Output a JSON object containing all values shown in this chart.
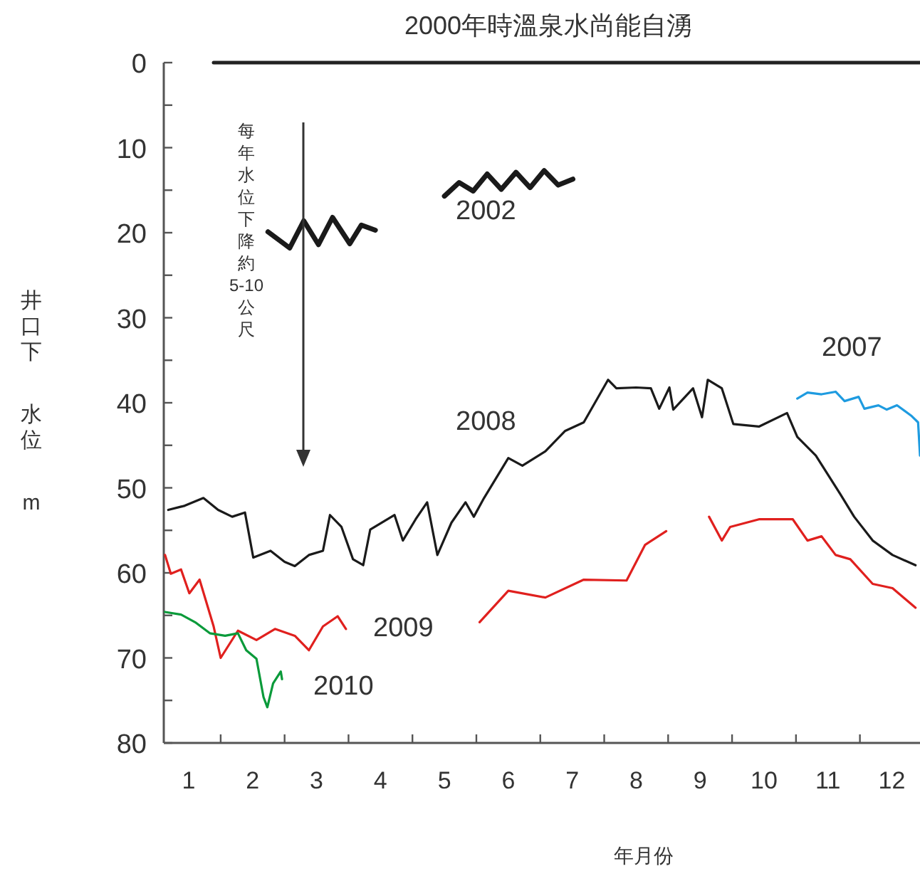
{
  "chart_data": {
    "type": "line",
    "title": "2000年時溫泉水尚能自湧",
    "xlabel": "年月份",
    "ylabel": "井口下水位m",
    "xlim": [
      0.61,
      12.44
    ],
    "ylim": [
      80,
      0
    ],
    "xticks": [
      {
        "value": 1,
        "label": "1"
      },
      {
        "value": 1.5,
        "label": null
      },
      {
        "value": 2,
        "label": "2"
      },
      {
        "value": 2.5,
        "label": null
      },
      {
        "value": 3,
        "label": "3"
      },
      {
        "value": 3.5,
        "label": null
      },
      {
        "value": 4,
        "label": "4"
      },
      {
        "value": 4.5,
        "label": null
      },
      {
        "value": 5,
        "label": "5"
      },
      {
        "value": 5.5,
        "label": null
      },
      {
        "value": 6,
        "label": "6"
      },
      {
        "value": 6.5,
        "label": null
      },
      {
        "value": 7,
        "label": "7"
      },
      {
        "value": 7.5,
        "label": null
      },
      {
        "value": 8,
        "label": "8"
      },
      {
        "value": 8.5,
        "label": null
      },
      {
        "value": 9,
        "label": "9"
      },
      {
        "value": 9.5,
        "label": null
      },
      {
        "value": 10,
        "label": "10"
      },
      {
        "value": 10.5,
        "label": null
      },
      {
        "value": 11,
        "label": "11"
      },
      {
        "value": 11.5,
        "label": null
      },
      {
        "value": 12,
        "label": "12"
      }
    ],
    "yticks": [
      0,
      {
        "value": 5,
        "label": null
      },
      10,
      {
        "value": 15,
        "label": null
      },
      20,
      {
        "value": 25,
        "label": null
      },
      30,
      {
        "value": 35,
        "label": null
      },
      40,
      {
        "value": 45,
        "label": null
      },
      50,
      {
        "value": 55,
        "label": null
      },
      60,
      {
        "value": 65,
        "label": null
      },
      70,
      {
        "value": 75,
        "label": null
      },
      80
    ],
    "annotations": [
      "每年水位下降約5-10公尺"
    ],
    "series": [
      {
        "color": "#222222",
        "x": [
          1.39,
          12.44
        ],
        "values": [
          0,
          0
        ]
      },
      {
        "name": "2002",
        "color": "#1a1a1a",
        "x": [
          2.24,
          2.58,
          2.8,
          3.03,
          3.25,
          3.52,
          3.7,
          3.92,
          null,
          5.0,
          5.23,
          5.45,
          5.67,
          5.89,
          6.12,
          6.34,
          6.56,
          6.78,
          7.01
        ],
        "values": [
          19.9,
          21.8,
          18.6,
          21.4,
          18.2,
          21.3,
          19.1,
          19.7,
          null,
          15.7,
          14.1,
          15.1,
          13.1,
          14.9,
          12.9,
          14.7,
          12.7,
          14.4,
          13.7
        ]
      },
      {
        "name": "2007",
        "color": "#1e9be0",
        "x": [
          10.52,
          10.68,
          10.9,
          11.12,
          11.26,
          11.48,
          11.57,
          11.79,
          11.92,
          12.08,
          12.3,
          12.41,
          12.44
        ],
        "values": [
          39.5,
          38.8,
          39.0,
          38.7,
          39.8,
          39.3,
          40.7,
          40.3,
          40.8,
          40.3,
          41.5,
          42.3,
          46.2
        ]
      },
      {
        "name": "2008",
        "color": "#1a1a1a",
        "x": [
          0.68,
          0.94,
          1.23,
          1.46,
          1.68,
          1.88,
          2.01,
          2.28,
          2.5,
          2.66,
          2.88,
          3.1,
          3.21,
          3.39,
          3.57,
          3.73,
          3.84,
          4.22,
          4.35,
          4.55,
          4.73,
          4.89,
          5.11,
          5.33,
          5.46,
          5.62,
          6.0,
          6.22,
          6.58,
          6.89,
          7.18,
          7.56,
          7.69,
          8.0,
          8.23,
          8.36,
          8.52,
          8.58,
          8.89,
          9.03,
          9.12,
          9.34,
          9.52,
          9.92,
          10.36,
          10.52,
          10.81,
          11.19,
          11.41,
          11.7,
          12.01,
          12.37
        ],
        "values": [
          52.6,
          52.1,
          51.2,
          52.6,
          53.4,
          52.9,
          58.2,
          57.4,
          58.7,
          59.2,
          57.9,
          57.4,
          53.2,
          54.6,
          58.4,
          59.1,
          54.9,
          53.2,
          56.2,
          53.7,
          51.7,
          57.9,
          54.1,
          51.7,
          53.4,
          51.2,
          46.5,
          47.4,
          45.7,
          43.3,
          42.3,
          37.3,
          38.3,
          38.2,
          38.3,
          40.7,
          38.2,
          40.8,
          38.3,
          41.7,
          37.3,
          38.3,
          42.5,
          42.8,
          41.2,
          44.0,
          46.2,
          50.7,
          53.4,
          56.2,
          57.9,
          59.1
        ]
      },
      {
        "name": "2009",
        "color": "#e0201e",
        "x": [
          0.63,
          0.72,
          0.88,
          1.01,
          1.17,
          1.39,
          1.5,
          1.77,
          2.06,
          2.35,
          2.66,
          2.88,
          3.1,
          3.33,
          3.46,
          null,
          5.55,
          6.0,
          6.58,
          7.18,
          7.85,
          8.14,
          8.47,
          null,
          9.14,
          9.34,
          9.47,
          9.92,
          10.45,
          10.68,
          10.9,
          11.12,
          11.35,
          11.7,
          12.01,
          12.37
        ],
        "values": [
          57.9,
          60.1,
          59.6,
          62.4,
          60.8,
          66.3,
          70.0,
          66.8,
          67.9,
          66.6,
          67.4,
          69.1,
          66.3,
          65.1,
          66.6,
          null,
          65.8,
          62.1,
          62.9,
          60.8,
          60.9,
          56.7,
          55.1,
          null,
          53.4,
          56.2,
          54.6,
          53.7,
          53.7,
          56.2,
          55.7,
          57.9,
          58.4,
          61.3,
          61.8,
          64.1
        ]
      },
      {
        "name": "2010",
        "color": "#0a9a3a",
        "x": [
          0.63,
          0.88,
          1.1,
          1.33,
          1.57,
          1.77,
          1.9,
          2.06,
          2.17,
          2.23,
          2.32,
          2.44,
          2.46
        ],
        "values": [
          64.6,
          64.9,
          65.8,
          67.1,
          67.4,
          67.1,
          69.1,
          70.1,
          74.6,
          75.8,
          73.0,
          71.6,
          72.5
        ]
      }
    ]
  }
}
